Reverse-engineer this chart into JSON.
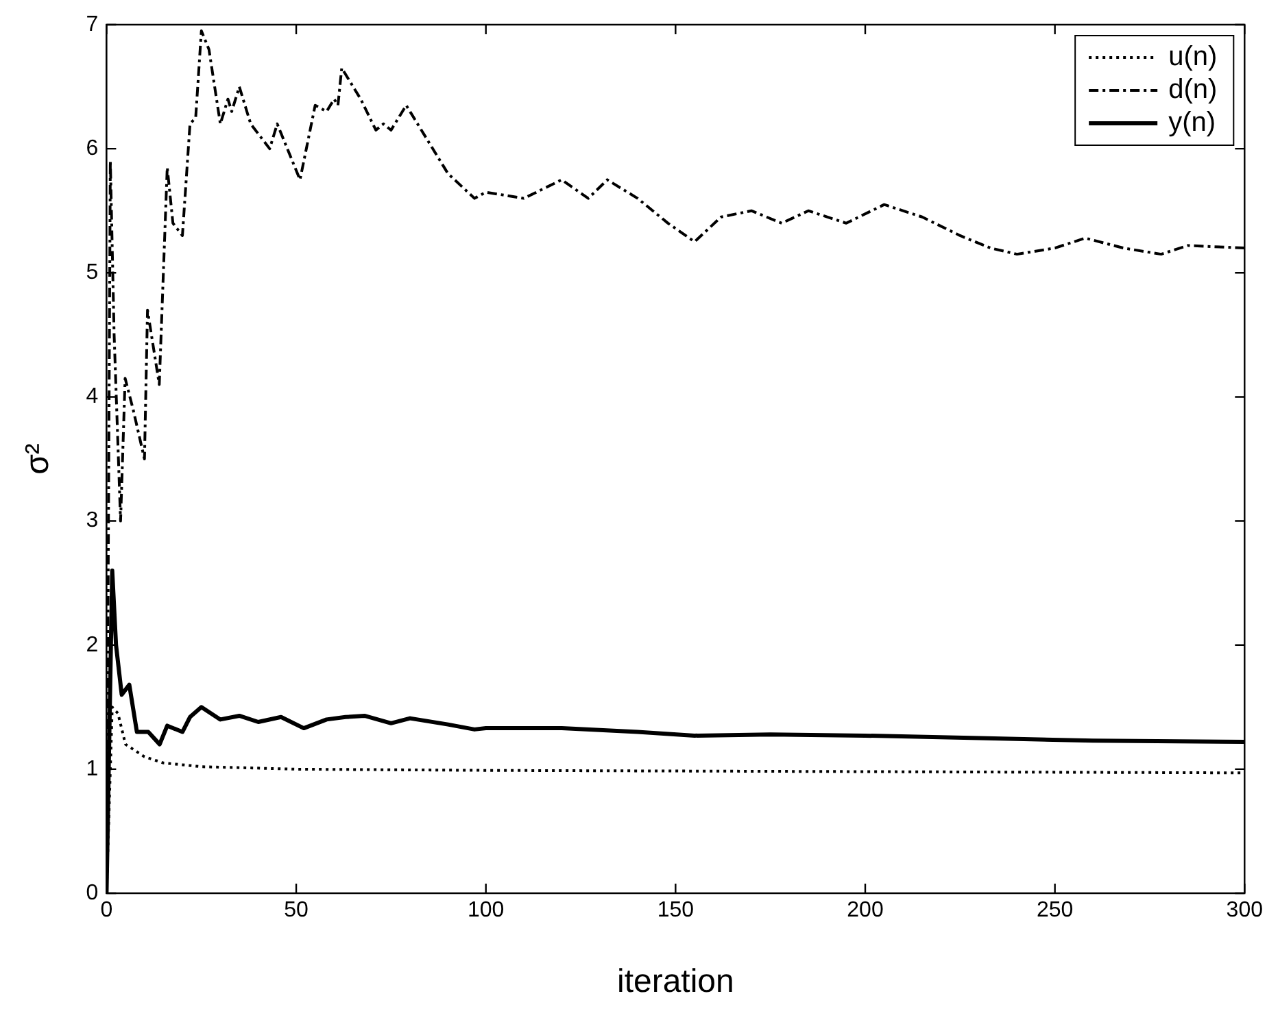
{
  "chart_data": {
    "type": "line",
    "xlabel": "iteration",
    "ylabel": "σ²",
    "xlim": [
      0,
      300
    ],
    "ylim": [
      0,
      7
    ],
    "xticks": [
      0,
      50,
      100,
      150,
      200,
      250,
      300
    ],
    "yticks": [
      0,
      1,
      2,
      3,
      4,
      5,
      6,
      7
    ],
    "grid": false,
    "legend": "top right",
    "marker": "none",
    "series": [
      {
        "name": "u(n)",
        "color": "#000000",
        "line_style": "dotted",
        "x": [
          0,
          1.5,
          3,
          5,
          10,
          15,
          25,
          50,
          100,
          200,
          300
        ],
        "values": [
          0,
          1.5,
          1.45,
          1.2,
          1.1,
          1.05,
          1.02,
          1.0,
          0.99,
          0.98,
          0.97
        ]
      },
      {
        "name": "d(n)",
        "color": "#000000",
        "line_style": "dashed",
        "x": [
          0,
          1,
          2,
          3.7,
          4.9,
          7,
          10,
          10.8,
          13.9,
          16,
          17.5,
          20,
          22,
          23.5,
          25,
          27,
          30,
          32,
          33,
          35,
          38,
          43,
          45,
          51,
          55,
          58,
          60,
          61,
          62,
          67,
          71,
          73,
          75,
          79,
          83,
          90,
          97,
          100,
          110,
          120,
          127,
          132,
          140,
          148,
          155,
          162,
          170,
          178,
          185,
          195,
          205,
          215,
          225,
          233,
          240,
          250,
          258,
          268,
          278,
          285,
          300
        ],
        "values": [
          0,
          5.9,
          4.5,
          3.0,
          4.15,
          3.9,
          3.5,
          4.7,
          4.1,
          5.85,
          5.4,
          5.3,
          6.2,
          6.25,
          6.95,
          6.8,
          6.2,
          6.4,
          6.3,
          6.5,
          6.2,
          6.0,
          6.2,
          5.75,
          6.35,
          6.3,
          6.4,
          6.35,
          6.65,
          6.4,
          6.15,
          6.2,
          6.15,
          6.35,
          6.15,
          5.8,
          5.6,
          5.65,
          5.6,
          5.75,
          5.6,
          5.75,
          5.6,
          5.4,
          5.25,
          5.45,
          5.5,
          5.4,
          5.5,
          5.4,
          5.55,
          5.45,
          5.3,
          5.2,
          5.15,
          5.2,
          5.28,
          5.2,
          5.15,
          5.22,
          5.2
        ]
      },
      {
        "name": "y(n)",
        "color": "#000000",
        "line_style": "solid",
        "x": [
          0,
          1.5,
          2.5,
          4,
          6,
          8,
          11,
          14,
          16,
          20,
          22,
          25,
          30,
          35,
          40,
          46,
          52,
          58,
          63,
          68,
          75,
          80,
          90,
          97,
          100,
          120,
          140,
          155,
          175,
          200,
          230,
          260,
          300
        ],
        "values": [
          0,
          2.6,
          2.0,
          1.6,
          1.68,
          1.3,
          1.3,
          1.2,
          1.35,
          1.3,
          1.42,
          1.5,
          1.4,
          1.43,
          1.38,
          1.42,
          1.33,
          1.4,
          1.42,
          1.43,
          1.37,
          1.41,
          1.36,
          1.32,
          1.33,
          1.33,
          1.3,
          1.27,
          1.28,
          1.27,
          1.25,
          1.23,
          1.22
        ]
      }
    ]
  }
}
